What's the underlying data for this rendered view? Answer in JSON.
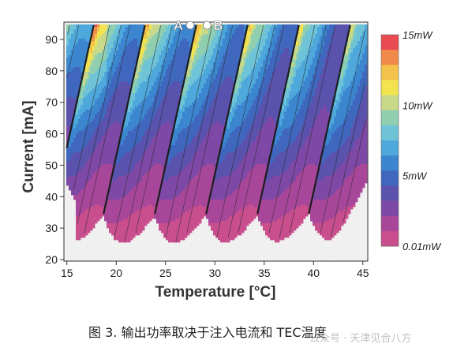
{
  "chart_data": {
    "type": "heatmap",
    "title": "",
    "xlabel": "Temperature [°C]",
    "ylabel": "Current [mA]",
    "xlim": [
      14.7,
      45.5
    ],
    "ylim": [
      19.5,
      95.5
    ],
    "x_ticks": [
      15,
      20,
      25,
      30,
      35,
      40,
      45
    ],
    "y_ticks": [
      20,
      30,
      40,
      50,
      60,
      70,
      80,
      90
    ],
    "colorbar": {
      "labels": [
        "15mW",
        "10mW",
        "5mW",
        "0.01mW"
      ],
      "label_values": [
        15,
        10,
        5,
        0.01
      ],
      "range": [
        0.01,
        15
      ],
      "colors": [
        "#e84b52",
        "#ef8a4a",
        "#f3c24a",
        "#f3e34f",
        "#c9d98a",
        "#8fcfb0",
        "#6ec3d6",
        "#4fa8db",
        "#3b86cf",
        "#3f67bd",
        "#5a52ad",
        "#7d48a6",
        "#a8479a",
        "#c84e8d"
      ]
    },
    "lobes": {
      "count": 8,
      "bottom_currents_mA": [
        26,
        25.5,
        26,
        26,
        26.5,
        27,
        28,
        30
      ],
      "bottom_temperatures_C": [
        18.0,
        23.0,
        28.0,
        31.5,
        36.0,
        40.0,
        43.0,
        45.0
      ]
    },
    "points": [
      {
        "label": "A",
        "temperature": 27.5,
        "current": 94.5
      },
      {
        "label": "B",
        "temperature": 29.2,
        "current": 94.5
      }
    ],
    "grid": false
  },
  "caption": "图 3. 输出功率取决于注入电流和 TEC温度",
  "watermark": "公众号 · 天津见合八方"
}
